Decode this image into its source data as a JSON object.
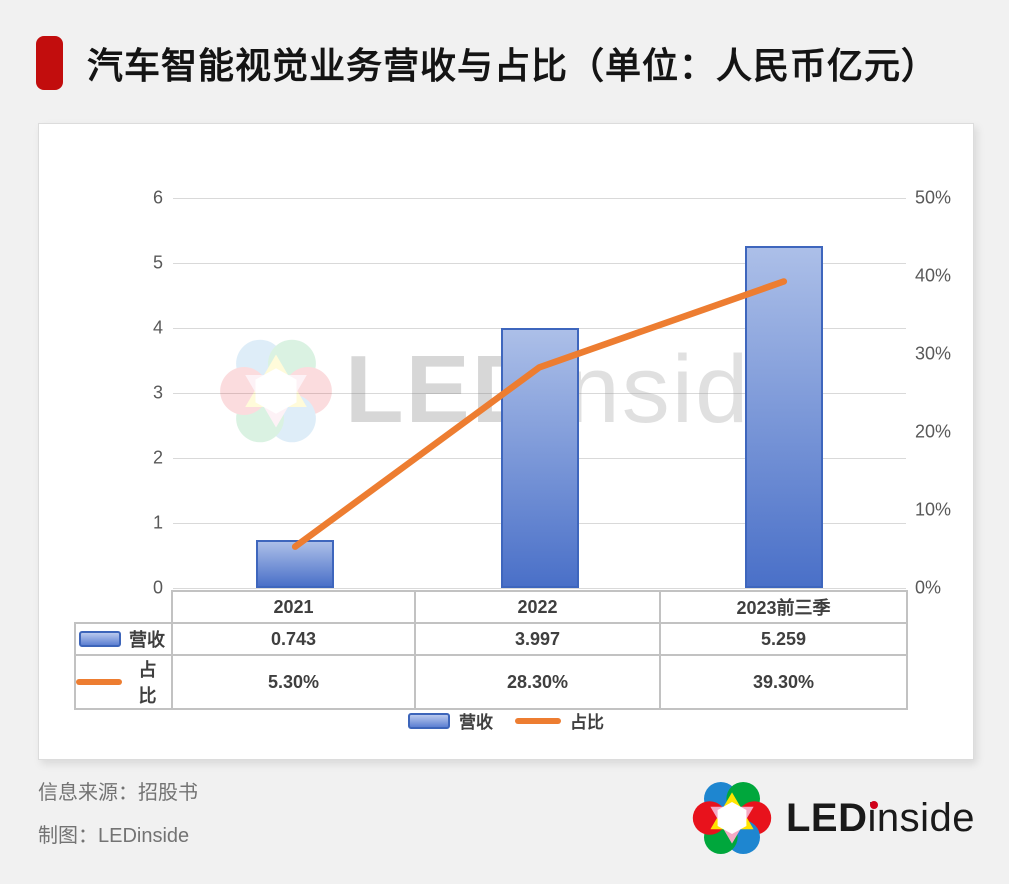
{
  "header": {
    "title": "汽车智能视觉业务营收与占比（单位：人民币亿元）"
  },
  "chart_data": {
    "type": "bar+line",
    "title": "汽车智能视觉业务营收与占比（单位：人民币亿元）",
    "categories": [
      "2021",
      "2022",
      "2023前三季"
    ],
    "series": [
      {
        "name": "营收",
        "type": "bar",
        "axis": "left",
        "values": [
          0.743,
          3.997,
          5.259
        ]
      },
      {
        "name": "占比",
        "type": "line",
        "axis": "right",
        "values": [
          5.3,
          28.3,
          39.3
        ]
      }
    ],
    "y_left": {
      "min": 0,
      "max": 6,
      "ticks": [
        "6",
        "5",
        "4",
        "3",
        "2",
        "1",
        "0"
      ]
    },
    "y_right": {
      "min": 0,
      "max": 50,
      "ticks": [
        "50%",
        "40%",
        "30%",
        "20%",
        "10%",
        "0%"
      ]
    },
    "grid": true,
    "legend_position": "bottom"
  },
  "table": {
    "categories": [
      "2021",
      "2022",
      "2023前三季"
    ],
    "row_labels": [
      "营收",
      "占比"
    ],
    "rows": [
      [
        "0.743",
        "3.997",
        "5.259"
      ],
      [
        "5.30%",
        "28.30%",
        "39.30%"
      ]
    ]
  },
  "legend": {
    "items": [
      {
        "label": "营收",
        "type": "bar"
      },
      {
        "label": "占比",
        "type": "line"
      }
    ]
  },
  "watermark": {
    "bold": "LED",
    "rest": "inside"
  },
  "footer": {
    "source_line": "信息来源：招股书",
    "credit_line": "制图：LEDinside"
  },
  "brand": {
    "bold": "LED",
    "rest": "inside",
    "colors": {
      "blue": "#1e86d0",
      "green": "#00a73c",
      "red": "#e8121c",
      "yellow": "#ffe400",
      "pink": "#f5aac5",
      "white": "#ffffff"
    }
  },
  "colors": {
    "accent_red": "#c20d0d",
    "bar_gradient_top": "#acbfe8",
    "bar_gradient_bottom": "#4a70c8",
    "bar_border": "#3e66bd",
    "line_orange": "#ED7D31",
    "gridline": "#d9d9d9",
    "axis_text": "#595959",
    "table_border": "#c2c2c2",
    "page_background": "#f1f1f1",
    "card_background": "#ffffff"
  }
}
